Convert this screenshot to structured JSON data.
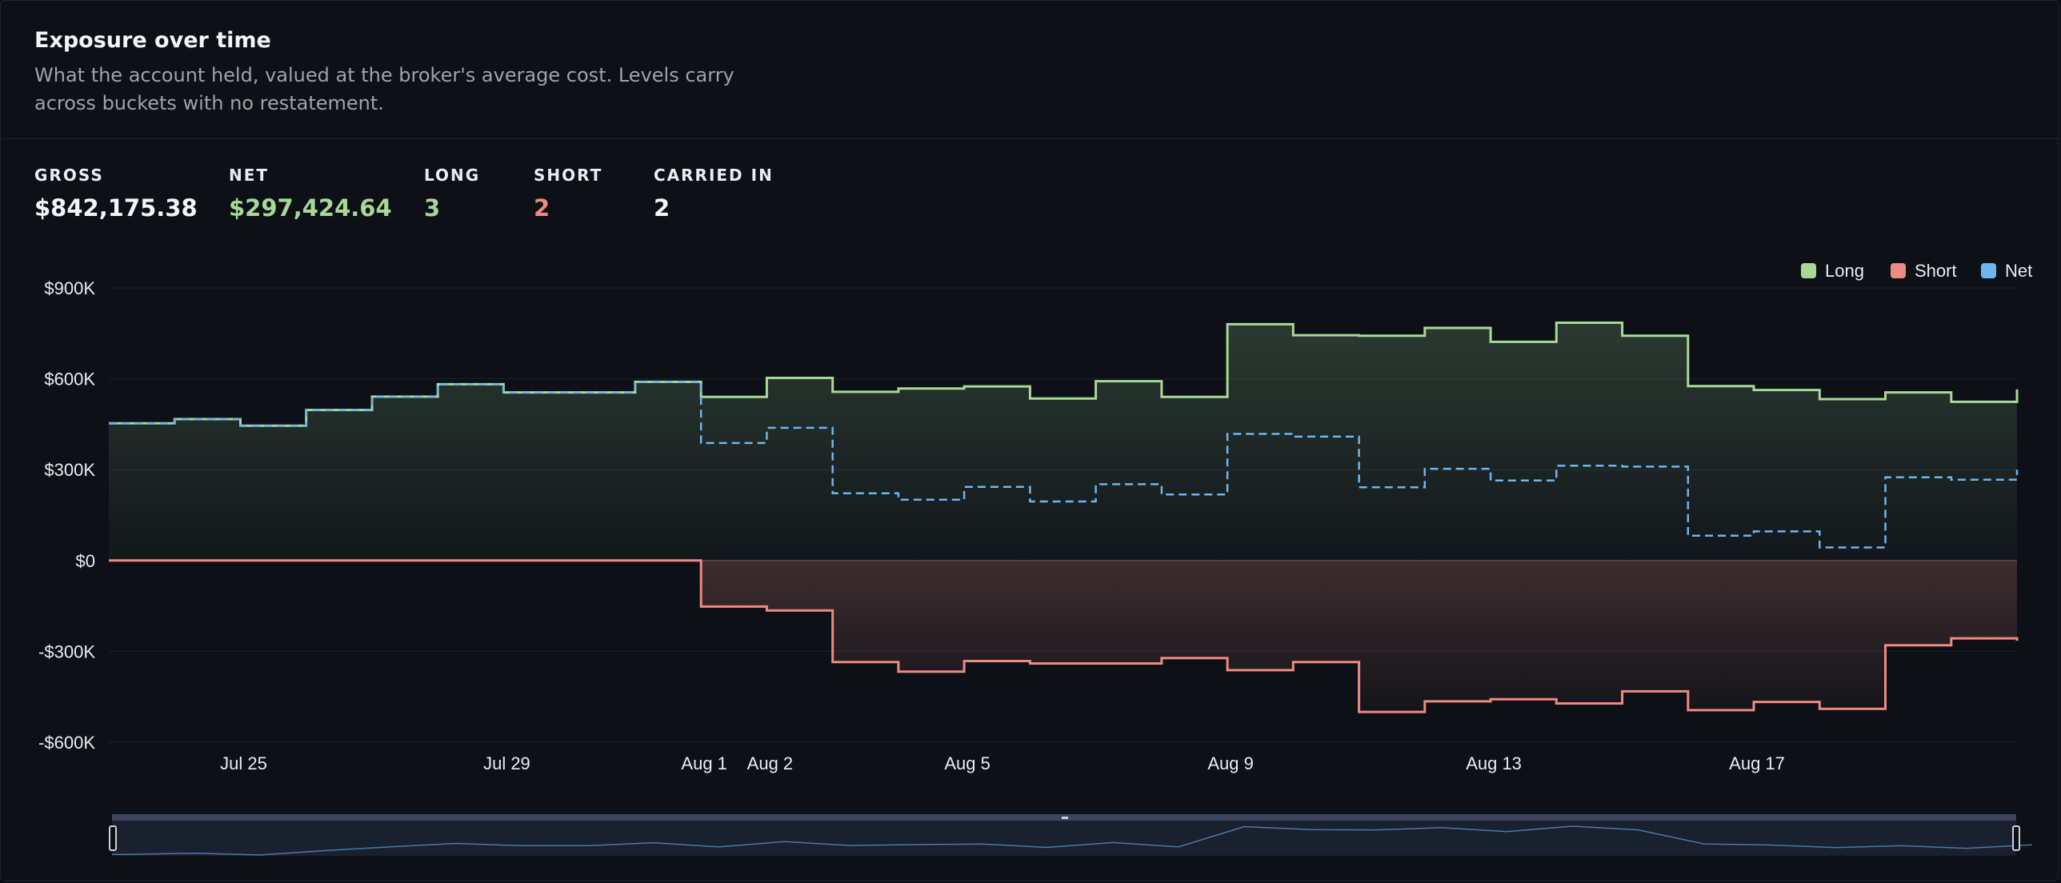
{
  "header": {
    "title": "Exposure over time",
    "subtitle": "What the account held, valued at the broker's average cost. Levels carry across buckets with no restatement."
  },
  "stats": [
    {
      "label": "GROSS",
      "value": "$842,175.38",
      "tone": "default"
    },
    {
      "label": "NET",
      "value": "$297,424.64",
      "tone": "green"
    },
    {
      "label": "LONG",
      "value": "3",
      "tone": "green"
    },
    {
      "label": "SHORT",
      "value": "2",
      "tone": "red"
    },
    {
      "label": "CARRIED IN",
      "value": "2",
      "tone": "default"
    }
  ],
  "legend": [
    {
      "label": "Long",
      "color": "#a6d996"
    },
    {
      "label": "Short",
      "color": "#ee8a80"
    },
    {
      "label": "Net",
      "color": "#6cb6f0"
    }
  ],
  "chart_data": {
    "type": "line",
    "step": true,
    "y_tick_labels": [
      "$900K",
      "$600K",
      "$300K",
      "$0",
      "-$300K",
      "-$600K"
    ],
    "y_tick_values": [
      900000,
      600000,
      300000,
      0,
      -300000,
      -600000
    ],
    "ylim": [
      -600000,
      900000
    ],
    "x_tick_labels": [
      "Jul 25",
      "Jul 29",
      "Aug 1",
      "Aug 2",
      "Aug 5",
      "Aug 9",
      "Aug 13",
      "Aug 17"
    ],
    "x_tick_dates": [
      "2024-07-25",
      "2024-07-29",
      "2024-08-01",
      "2024-08-02",
      "2024-08-05",
      "2024-08-09",
      "2024-08-13",
      "2024-08-17"
    ],
    "x": [
      "2024-07-23",
      "2024-07-24",
      "2024-07-25",
      "2024-07-26",
      "2024-07-27",
      "2024-07-28",
      "2024-07-29",
      "2024-07-30",
      "2024-07-31",
      "2024-08-01",
      "2024-08-02",
      "2024-08-03",
      "2024-08-04",
      "2024-08-05",
      "2024-08-06",
      "2024-08-07",
      "2024-08-08",
      "2024-08-09",
      "2024-08-10",
      "2024-08-11",
      "2024-08-12",
      "2024-08-13",
      "2024-08-14",
      "2024-08-15",
      "2024-08-16",
      "2024-08-17",
      "2024-08-18",
      "2024-08-19",
      "2024-08-20",
      "2024-08-21"
    ],
    "x_end": "2024-08-21",
    "series": [
      {
        "name": "Long",
        "color": "#a6d996",
        "style": "solid",
        "values": [
          453000,
          467000,
          445000,
          497000,
          541000,
          582000,
          555000,
          555000,
          590000,
          540000,
          603000,
          557000,
          568000,
          575000,
          535000,
          592000,
          540000,
          780000,
          744000,
          742000,
          768000,
          722000,
          785000,
          742000,
          576000,
          563000,
          533000,
          555000,
          524000,
          565000
        ]
      },
      {
        "name": "Short",
        "color": "#ee8a80",
        "style": "solid",
        "values": [
          0,
          0,
          0,
          0,
          0,
          0,
          0,
          0,
          0,
          -152000,
          -165000,
          -335000,
          -367000,
          -332000,
          -340000,
          -340000,
          -322000,
          -362000,
          -335000,
          -500000,
          -465000,
          -458000,
          -472000,
          -432000,
          -494000,
          -467000,
          -490000,
          -280000,
          -257000,
          -265000
        ]
      },
      {
        "name": "Net",
        "color": "#6cb6f0",
        "style": "dashed",
        "values": [
          453000,
          467000,
          445000,
          497000,
          541000,
          582000,
          555000,
          555000,
          590000,
          388000,
          438000,
          222000,
          201000,
          243000,
          195000,
          252000,
          218000,
          418000,
          409000,
          242000,
          303000,
          264000,
          313000,
          310000,
          82000,
          96000,
          43000,
          275000,
          267000,
          300000
        ]
      }
    ]
  }
}
